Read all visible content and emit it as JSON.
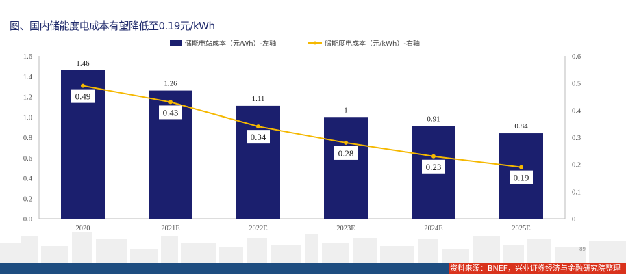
{
  "title": "图、国内储能度电成本有望降低至0.19元/kWh",
  "chart_data": {
    "type": "bar+line",
    "categories": [
      "2020",
      "2021E",
      "2022E",
      "2023E",
      "2024E",
      "2025E"
    ],
    "series": [
      {
        "name": "储能电站成本（元/Wh）-左轴",
        "type": "bar",
        "axis": "left",
        "values": [
          1.46,
          1.26,
          1.11,
          1,
          0.91,
          0.84
        ],
        "labels": [
          "1.46",
          "1.26",
          "1.11",
          "1",
          "0.91",
          "0.84"
        ],
        "color": "#1b1f6e"
      },
      {
        "name": "储能度电成本（元/kWh）-右轴",
        "type": "line",
        "axis": "right",
        "values": [
          0.49,
          0.43,
          0.34,
          0.28,
          0.23,
          0.19
        ],
        "labels": [
          "0.49",
          "0.43",
          "0.34",
          "0.28",
          "0.23",
          "0.19"
        ],
        "color": "#f5b800"
      }
    ],
    "left_axis": {
      "min": 0,
      "max": 1.6,
      "ticks": [
        "0.0",
        "0.2",
        "0.4",
        "0.6",
        "0.8",
        "1.0",
        "1.2",
        "1.4",
        "1.6"
      ]
    },
    "right_axis": {
      "min": 0,
      "max": 0.6,
      "ticks": [
        "0",
        "0.1",
        "0.2",
        "0.3",
        "0.4",
        "0.5",
        "0.6"
      ]
    },
    "legend_position": "top",
    "grid": false
  },
  "page_number": "89",
  "source": "资料来源：BNEF，兴业证券经济与金融研究院整理"
}
